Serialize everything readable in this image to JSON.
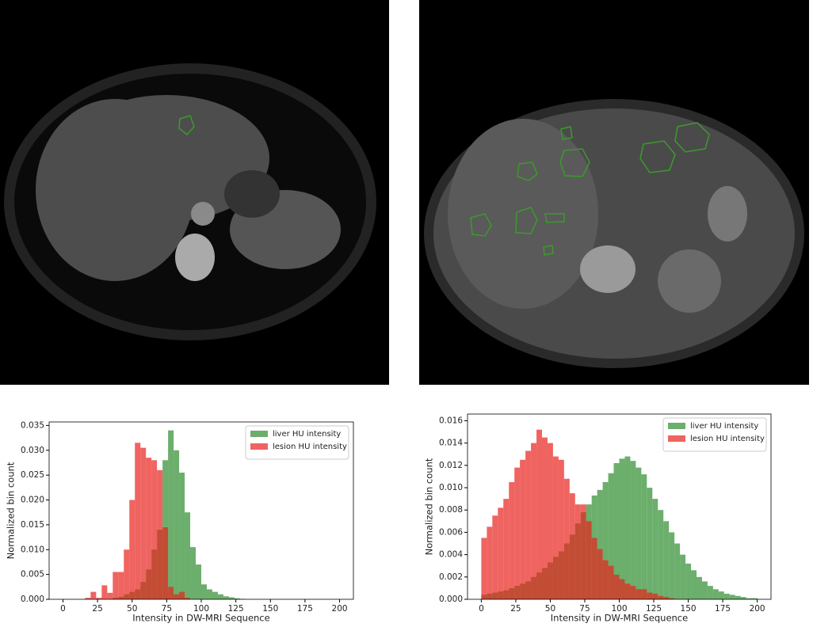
{
  "chart_data": [
    {
      "type": "histogram",
      "xlabel": "Intensity in DW-MRI Sequence",
      "ylabel": "Normalized bin count",
      "legend": "upper right",
      "bins": [
        0,
        4,
        8,
        12,
        16,
        20,
        24,
        28,
        32,
        36,
        40,
        44,
        48,
        52,
        56,
        60,
        64,
        68,
        72,
        76,
        80,
        84,
        88,
        92,
        96,
        100,
        104,
        108,
        112,
        116,
        120,
        124,
        128,
        132,
        136,
        140,
        144,
        148,
        152,
        156,
        160,
        164,
        168,
        172,
        176,
        180,
        184,
        188,
        192,
        196,
        200
      ],
      "series": [
        {
          "name": "liver HU intensity",
          "color": "#2e8b2e",
          "values": [
            0,
            0,
            0,
            0,
            0,
            0,
            0,
            0,
            0,
            0.0003,
            0.0005,
            0.001,
            0.0015,
            0.002,
            0.0035,
            0.006,
            0.01,
            0.014,
            0.028,
            0.034,
            0.03,
            0.0255,
            0.0175,
            0.0105,
            0.007,
            0.003,
            0.002,
            0.0015,
            0.001,
            0.0006,
            0.0004,
            0.0002,
            0.0001,
            0,
            0,
            0,
            0,
            0,
            0,
            0,
            0,
            0,
            0,
            0,
            0,
            0,
            0,
            0,
            0,
            0
          ]
        },
        {
          "name": "lesion HU intensity",
          "color": "#e8221c",
          "values": [
            0,
            0,
            0,
            0,
            0.0003,
            0.0015,
            0.0003,
            0.0028,
            0.0013,
            0.0055,
            0.0055,
            0.01,
            0.02,
            0.0315,
            0.0305,
            0.0285,
            0.028,
            0.026,
            0.0145,
            0.0025,
            0.001,
            0.0015,
            0.0003,
            0,
            0,
            0,
            0,
            0,
            0,
            0,
            0,
            0,
            0,
            0,
            0,
            0,
            0,
            0,
            0,
            0,
            0,
            0,
            0,
            0,
            0,
            0,
            0,
            0,
            0,
            0
          ]
        }
      ],
      "xlim": [
        -10,
        210
      ],
      "ylim": [
        0,
        0.0357
      ],
      "xticks": [
        0,
        25,
        50,
        75,
        100,
        125,
        150,
        175,
        200
      ],
      "yticks": [
        {
          "value": 0,
          "label": "0.000"
        },
        {
          "value": 0.005,
          "label": "0.005"
        },
        {
          "value": 0.01,
          "label": "0.010"
        },
        {
          "value": 0.015,
          "label": "0.015"
        },
        {
          "value": 0.02,
          "label": "0.020"
        },
        {
          "value": 0.025,
          "label": "0.025"
        },
        {
          "value": 0.03,
          "label": "0.030"
        },
        {
          "value": 0.035,
          "label": "0.035"
        }
      ]
    },
    {
      "type": "histogram",
      "xlabel": "Intensity in DW-MRI Sequence",
      "ylabel": "Normalized bin count",
      "legend": "upper right",
      "bins": [
        0,
        4,
        8,
        12,
        16,
        20,
        24,
        28,
        32,
        36,
        40,
        44,
        48,
        52,
        56,
        60,
        64,
        68,
        72,
        76,
        80,
        84,
        88,
        92,
        96,
        100,
        104,
        108,
        112,
        116,
        120,
        124,
        128,
        132,
        136,
        140,
        144,
        148,
        152,
        156,
        160,
        164,
        168,
        172,
        176,
        180,
        184,
        188,
        192,
        196,
        200
      ],
      "series": [
        {
          "name": "liver HU intensity",
          "color": "#2e8b2e",
          "values": [
            0.0004,
            0.0005,
            0.0006,
            0.0007,
            0.0008,
            0.001,
            0.0012,
            0.0014,
            0.0016,
            0.002,
            0.0024,
            0.0028,
            0.0033,
            0.0038,
            0.0043,
            0.005,
            0.0058,
            0.0068,
            0.0078,
            0.0085,
            0.0093,
            0.0098,
            0.0105,
            0.0113,
            0.0122,
            0.0126,
            0.0128,
            0.0124,
            0.0118,
            0.0112,
            0.01,
            0.009,
            0.008,
            0.007,
            0.006,
            0.005,
            0.004,
            0.0032,
            0.0026,
            0.002,
            0.0016,
            0.0012,
            0.0009,
            0.0007,
            0.0005,
            0.0004,
            0.0003,
            0.0002,
            0.0001,
            0.0001
          ]
        },
        {
          "name": "lesion HU intensity",
          "color": "#e8221c",
          "values": [
            0.0055,
            0.0065,
            0.0075,
            0.0082,
            0.009,
            0.0105,
            0.0118,
            0.0125,
            0.0133,
            0.014,
            0.0152,
            0.0145,
            0.014,
            0.0128,
            0.0125,
            0.0108,
            0.0095,
            0.0085,
            0.0085,
            0.007,
            0.0055,
            0.0045,
            0.0035,
            0.003,
            0.0022,
            0.0018,
            0.0014,
            0.0012,
            0.0009,
            0.0009,
            0.0006,
            0.0005,
            0.0003,
            0.0002,
            0.0001,
            0,
            0,
            0,
            0,
            0,
            0,
            0,
            0,
            0,
            0,
            0,
            0,
            0,
            0,
            0
          ]
        }
      ],
      "xlim": [
        -10,
        210
      ],
      "ylim": [
        0,
        0.0166
      ],
      "xticks": [
        0,
        25,
        50,
        75,
        100,
        125,
        150,
        175,
        200
      ],
      "yticks": [
        {
          "value": 0,
          "label": "0.000"
        },
        {
          "value": 0.002,
          "label": "0.002"
        },
        {
          "value": 0.004,
          "label": "0.004"
        },
        {
          "value": 0.006,
          "label": "0.006"
        },
        {
          "value": 0.008,
          "label": "0.008"
        },
        {
          "value": 0.01,
          "label": "0.010"
        },
        {
          "value": 0.012,
          "label": "0.012"
        },
        {
          "value": 0.014,
          "label": "0.014"
        },
        {
          "value": 0.016,
          "label": "0.016"
        }
      ]
    }
  ]
}
